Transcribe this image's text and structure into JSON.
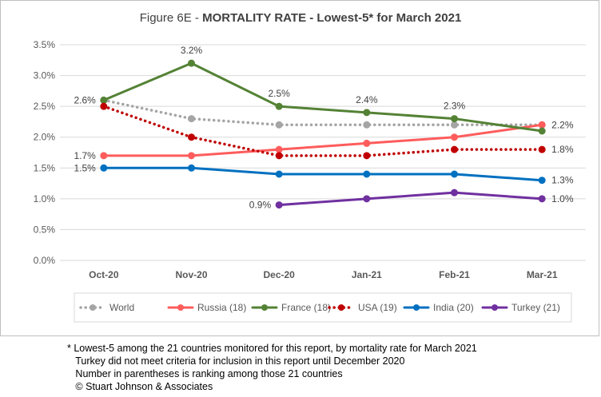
{
  "chart_data": {
    "type": "line",
    "title_prefix": "Figure 6E  - ",
    "title_main": "MORTALITY RATE - Lowest-5* for March 2021",
    "categories": [
      "Oct-20",
      "Nov-20",
      "Dec-20",
      "Jan-21",
      "Feb-21",
      "Mar-21"
    ],
    "ylim": [
      0,
      3.5
    ],
    "yticks": [
      "0.0%",
      "0.5%",
      "1.0%",
      "1.5%",
      "2.0%",
      "2.5%",
      "3.0%",
      "3.5%"
    ],
    "ytick_values": [
      0,
      0.5,
      1.0,
      1.5,
      2.0,
      2.5,
      3.0,
      3.5
    ],
    "grid": true,
    "legend_position": "bottom",
    "series": [
      {
        "name": "World",
        "color": "#a5a5a5",
        "style": "dotted",
        "values": [
          2.6,
          2.3,
          2.2,
          2.2,
          2.2,
          2.2
        ]
      },
      {
        "name": "Russia (18)",
        "color": "#ff5c5c",
        "style": "solid",
        "values": [
          1.7,
          1.7,
          1.8,
          1.9,
          2.0,
          2.2
        ]
      },
      {
        "name": "France (18)",
        "color": "#548235",
        "style": "solid",
        "values": [
          2.6,
          3.2,
          2.5,
          2.4,
          2.3,
          2.1
        ]
      },
      {
        "name": "USA (19)",
        "color": "#c00000",
        "style": "dotted",
        "values": [
          2.5,
          2.0,
          1.7,
          1.7,
          1.8,
          1.8
        ]
      },
      {
        "name": "India (20)",
        "color": "#0070c0",
        "style": "solid",
        "values": [
          1.5,
          1.5,
          1.4,
          1.4,
          1.4,
          1.3
        ]
      },
      {
        "name": "Turkey (21)",
        "color": "#7030a0",
        "style": "solid",
        "values": [
          null,
          null,
          0.9,
          1.0,
          1.1,
          1.0
        ]
      }
    ],
    "data_labels": [
      {
        "series": "France (18)",
        "index": 0,
        "text": "2.6%",
        "pos": "left"
      },
      {
        "series": "France (18)",
        "index": 1,
        "text": "3.2%",
        "pos": "above"
      },
      {
        "series": "France (18)",
        "index": 2,
        "text": "2.5%",
        "pos": "above"
      },
      {
        "series": "France (18)",
        "index": 3,
        "text": "2.4%",
        "pos": "above"
      },
      {
        "series": "France (18)",
        "index": 4,
        "text": "2.3%",
        "pos": "above"
      },
      {
        "series": "Russia (18)",
        "index": 0,
        "text": "1.7%",
        "pos": "left"
      },
      {
        "series": "India (20)",
        "index": 0,
        "text": "1.5%",
        "pos": "left"
      },
      {
        "series": "Turkey (21)",
        "index": 2,
        "text": "0.9%",
        "pos": "left"
      },
      {
        "series": "Russia (18)",
        "index": 5,
        "text": "2.2%",
        "pos": "right"
      },
      {
        "series": "USA (19)",
        "index": 5,
        "text": "1.8%",
        "pos": "right"
      },
      {
        "series": "India (20)",
        "index": 5,
        "text": "1.3%",
        "pos": "right"
      },
      {
        "series": "Turkey (21)",
        "index": 5,
        "text": "1.0%",
        "pos": "right"
      }
    ]
  },
  "footnotes": [
    "* Lowest-5 among the 21 countries monitored for this report, by mortality rate for March 2021",
    "   Turkey did not meet criteria for inclusion in this report until December 2020",
    "   Number in parentheses is ranking among those 21 countries",
    "   © Stuart Johnson & Associates"
  ]
}
